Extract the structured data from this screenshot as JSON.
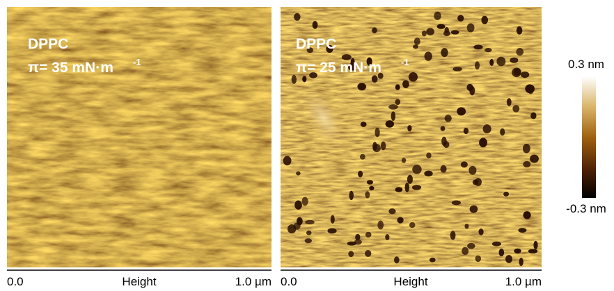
{
  "panels": [
    {
      "sample": "DPPC",
      "pressure": "π= 35 mN·m",
      "exponent": "-1",
      "axis": {
        "start": "0.0",
        "label": "Height",
        "end": "1.0 µm"
      }
    },
    {
      "sample": "DPPC",
      "pressure": "π= 25 mN·m",
      "exponent": "-1",
      "axis": {
        "start": "0.0",
        "label": "Height",
        "end": "1.0 µm"
      }
    }
  ],
  "colorbar": {
    "max": "0.3 nm",
    "min": "-0.3 nm"
  }
}
